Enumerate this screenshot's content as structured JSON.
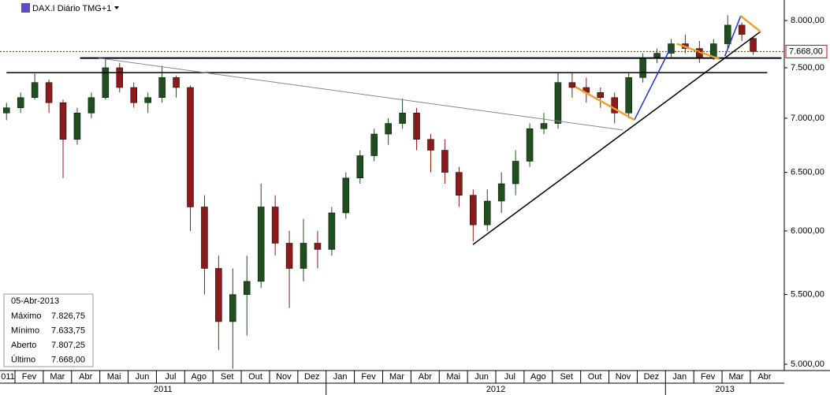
{
  "chart_data": {
    "type": "candlestick",
    "title": "DAX.I Diário TMG+1",
    "log_scale": true,
    "xlim": [
      0.47,
      28.2
    ],
    "ylim": [
      4957,
      8228
    ],
    "yticks": [
      {
        "value": 8000,
        "label": "8.000,00"
      },
      {
        "value": 7500,
        "label": "7.500,00"
      },
      {
        "value": 7000,
        "label": "7.000,00"
      },
      {
        "value": 6500,
        "label": "6.500,00"
      },
      {
        "value": 6000,
        "label": "6.000,00"
      },
      {
        "value": 5500,
        "label": "5.500,00"
      },
      {
        "value": 5000,
        "label": "5.000,00"
      }
    ],
    "xticks": [
      {
        "value": 0.5,
        "label": "011"
      },
      {
        "value": 1.5,
        "label": "Fev"
      },
      {
        "value": 2.5,
        "label": "Mar"
      },
      {
        "value": 3.5,
        "label": "Abr"
      },
      {
        "value": 4.5,
        "label": "Mai"
      },
      {
        "value": 5.5,
        "label": "Jun"
      },
      {
        "value": 6.5,
        "label": "Jul"
      },
      {
        "value": 7.5,
        "label": "Ago"
      },
      {
        "value": 8.5,
        "label": "Set"
      },
      {
        "value": 9.5,
        "label": "Out"
      },
      {
        "value": 10.5,
        "label": "Nov"
      },
      {
        "value": 11.5,
        "label": "Dez"
      },
      {
        "value": 12.5,
        "label": "Jan"
      },
      {
        "value": 13.5,
        "label": "Fev"
      },
      {
        "value": 14.5,
        "label": "Mar"
      },
      {
        "value": 15.5,
        "label": "Abr"
      },
      {
        "value": 16.5,
        "label": "Mai"
      },
      {
        "value": 17.5,
        "label": "Jun"
      },
      {
        "value": 18.5,
        "label": "Jul"
      },
      {
        "value": 19.5,
        "label": "Ago"
      },
      {
        "value": 20.5,
        "label": "Set"
      },
      {
        "value": 21.5,
        "label": "Out"
      },
      {
        "value": 22.5,
        "label": "Nov"
      },
      {
        "value": 23.5,
        "label": "Dez"
      },
      {
        "value": 24.5,
        "label": "Jan"
      },
      {
        "value": 25.5,
        "label": "Fev"
      },
      {
        "value": 26.5,
        "label": "Mar"
      },
      {
        "value": 27.5,
        "label": "Abr"
      }
    ],
    "years": [
      {
        "start": 0,
        "end": 12,
        "label": "2011"
      },
      {
        "start": 12,
        "end": 24,
        "label": "2012"
      },
      {
        "start": 24,
        "end": 28.2,
        "label": "2013"
      }
    ],
    "up_color": "#1f4f1f",
    "down_color": "#8b1a1a",
    "x": [
      0.7,
      1.2,
      1.7,
      2.2,
      2.7,
      3.2,
      3.7,
      4.2,
      4.7,
      5.2,
      5.7,
      6.2,
      6.7,
      7.2,
      7.7,
      8.2,
      8.7,
      9.2,
      9.7,
      10.2,
      10.7,
      11.2,
      11.7,
      12.2,
      12.7,
      13.2,
      13.7,
      14.2,
      14.7,
      15.2,
      15.7,
      16.2,
      16.7,
      17.2,
      17.7,
      18.2,
      18.7,
      19.2,
      19.7,
      20.2,
      20.7,
      21.2,
      21.7,
      22.2,
      22.7,
      23.2,
      23.7,
      24.2,
      24.7,
      25.2,
      25.7,
      26.2,
      26.7,
      27.1
    ],
    "open": [
      7050,
      7100,
      7200,
      7350,
      7150,
      6800,
      7050,
      7200,
      7500,
      7300,
      7150,
      7200,
      7400,
      7300,
      6200,
      5700,
      5300,
      5500,
      5600,
      6200,
      5900,
      5700,
      5900,
      5850,
      6150,
      6450,
      6650,
      6850,
      6950,
      7050,
      6800,
      6700,
      6500,
      6300,
      6050,
      6250,
      6400,
      6600,
      6900,
      6950,
      7350,
      7300,
      7250,
      7200,
      7050,
      7400,
      7600,
      7650,
      7750,
      7700,
      7600,
      7750,
      7950,
      7807.25
    ],
    "high": [
      7150,
      7250,
      7440,
      7380,
      7180,
      7100,
      7250,
      7600,
      7550,
      7350,
      7250,
      7520,
      7420,
      7320,
      6300,
      5800,
      5700,
      5800,
      6400,
      6300,
      6000,
      6100,
      6000,
      6200,
      6500,
      6700,
      6900,
      7000,
      7190,
      7100,
      6850,
      6800,
      6550,
      6350,
      6350,
      6500,
      6700,
      6950,
      7050,
      7450,
      7450,
      7400,
      7300,
      7250,
      7450,
      7650,
      7700,
      7800,
      7850,
      7780,
      7800,
      8058,
      7980,
      7826.75
    ],
    "low": [
      6980,
      7050,
      7180,
      7050,
      6450,
      6750,
      7000,
      7180,
      7250,
      7100,
      7050,
      7150,
      7200,
      6000,
      5500,
      5100,
      4970,
      5200,
      5550,
      5800,
      5400,
      5600,
      5700,
      5800,
      6100,
      6400,
      6600,
      6750,
      6900,
      6700,
      6500,
      6400,
      6200,
      5915,
      6000,
      6150,
      6300,
      6550,
      6850,
      6900,
      7200,
      7150,
      7100,
      6950,
      7000,
      7350,
      7550,
      7600,
      7650,
      7550,
      7580,
      7700,
      7780,
      7633.75
    ],
    "close": [
      7100,
      7200,
      7350,
      7150,
      6800,
      7050,
      7200,
      7500,
      7300,
      7150,
      7200,
      7400,
      7300,
      6200,
      5700,
      5300,
      5500,
      5600,
      6200,
      5900,
      5700,
      5900,
      5850,
      6150,
      6450,
      6650,
      6850,
      6950,
      7050,
      6800,
      6700,
      6500,
      6300,
      6050,
      6250,
      6400,
      6600,
      6900,
      6950,
      7350,
      7300,
      7250,
      7200,
      7050,
      7400,
      7600,
      7650,
      7750,
      7700,
      7600,
      7750,
      7950,
      7850,
      7668
    ],
    "last_price_label": "7.668,00",
    "last_price_color": "#cc0000",
    "trendlines": [
      {
        "x": [
          3.3,
          28.1
        ],
        "y": [
          7600,
          7600
        ],
        "color": "#000000",
        "width": 2
      },
      {
        "x": [
          0.7,
          27.6
        ],
        "y": [
          7450,
          7450
        ],
        "color": "#000000",
        "width": 1.5
      },
      {
        "x": [
          3.95,
          22.49
        ],
        "y": [
          7600,
          6888
        ],
        "color": "#888888",
        "width": 1
      },
      {
        "x": [
          17.19,
          27.36
        ],
        "y": [
          5889,
          7880
        ],
        "color": "#000000",
        "width": 1.5
      },
      {
        "x": [
          22.9,
          24.16
        ],
        "y": [
          6984,
          7695
        ],
        "color": "#2233cc",
        "width": 1.5
      },
      {
        "x": [
          26.1,
          26.66
        ],
        "y": [
          7620,
          8050
        ],
        "color": "#2233cc",
        "width": 1.5
      },
      {
        "x": [
          20.81,
          22.9
        ],
        "y": [
          7307,
          6984
        ],
        "color": "#f0a030",
        "width": 2.5
      },
      {
        "x": [
          24.4,
          25.9
        ],
        "y": [
          7750,
          7590
        ],
        "color": "#f0a030",
        "width": 2.5
      },
      {
        "x": [
          26.66,
          27.36
        ],
        "y": [
          8050,
          7880
        ],
        "color": "#f0a030",
        "width": 2.5
      }
    ],
    "info_box": {
      "date": "05-Abr-2013",
      "rows": [
        [
          "Máximo",
          "7.826,75"
        ],
        [
          "Mínimo",
          "7.633,75"
        ],
        [
          "Aberto",
          "7.807,25"
        ],
        [
          "Último",
          "7.668,00"
        ]
      ]
    }
  }
}
